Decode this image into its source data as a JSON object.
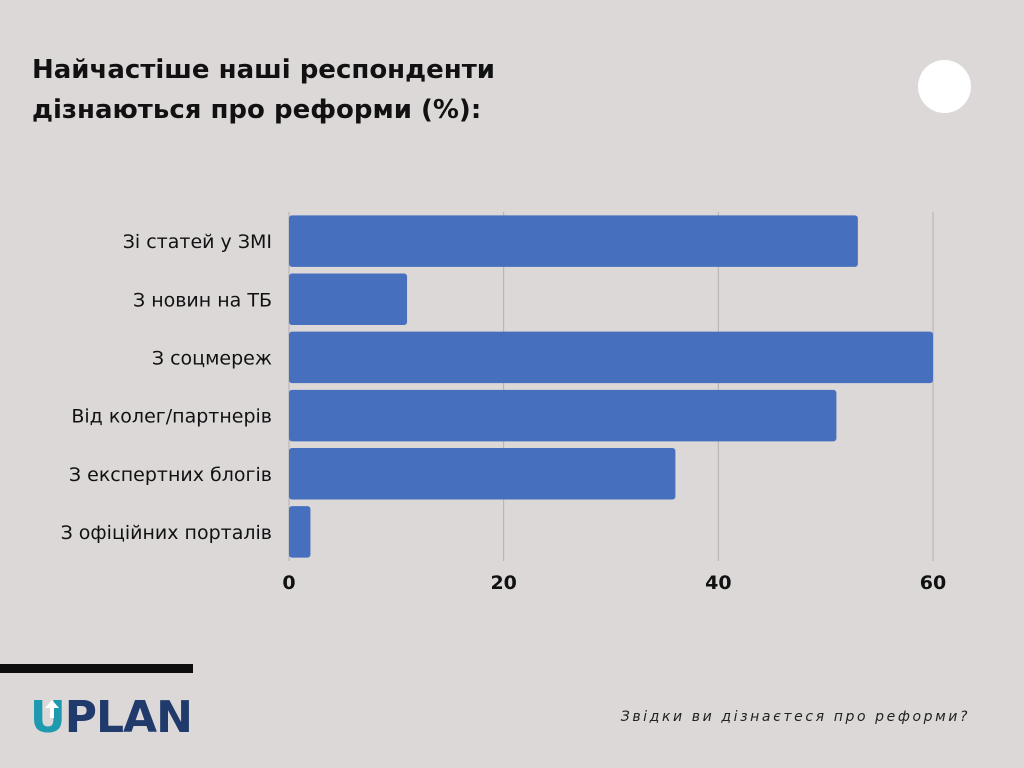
{
  "chart_data": {
    "type": "bar",
    "orientation": "horizontal",
    "title": "Найчастіше наші респонденти дізнаються про реформи (%):",
    "categories": [
      "Зі статей у ЗМІ",
      "З новин на ТБ",
      "З соцмереж",
      "Від колег/партнерів",
      "З експертних блогів",
      "З офіційних порталів"
    ],
    "values": [
      53,
      11,
      60,
      51,
      36,
      2
    ],
    "xticks": [
      "0",
      "20",
      "40",
      "60"
    ],
    "xlim": [
      0,
      60
    ],
    "grid": true,
    "bar_color": "#4670be",
    "grid_color": "#b4b0b0"
  },
  "header": {
    "title_line1": "Найчастіше наші респонденти",
    "title_line2": "дізнаються про реформи (%):"
  },
  "brand": {
    "logo_u": "U",
    "logo_rest": "PLAN",
    "logo_color": "#1f3a6b",
    "logo_accent": "#1e9ab0"
  },
  "footer": {
    "caption": "Звідки ви дізнаєтеся про реформи?"
  }
}
